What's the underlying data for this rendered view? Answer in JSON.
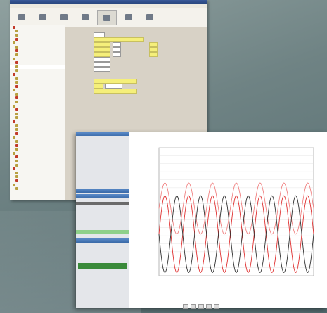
{
  "colors": {
    "red": "#e03030",
    "pink": "#f08080",
    "dark": "#303030",
    "yellow": "#f5ef7a",
    "green": "#3a8a3a"
  },
  "chart_data": {
    "type": "line",
    "series": [
      {
        "color": "#f08080",
        "amplitude": 1.6,
        "offset": 3.2,
        "cycles": 6.5
      },
      {
        "color": "#e03030",
        "amplitude": 2.4,
        "offset": 1.6,
        "cycles": 6.5
      },
      {
        "color": "#303030",
        "amplitude": 2.4,
        "offset": 1.6,
        "cycles": 6.5
      }
    ]
  }
}
